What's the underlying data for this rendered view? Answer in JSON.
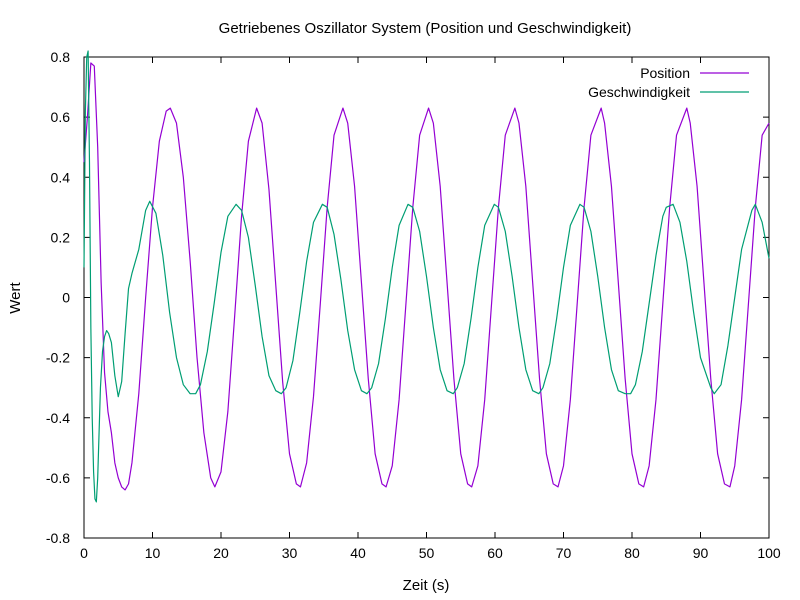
{
  "chart_data": {
    "type": "line",
    "title": "Getriebenes Oszillator System (Position und Geschwindigkeit)",
    "xlabel": "Zeit (s)",
    "ylabel": "Wert",
    "xlim": [
      0,
      100
    ],
    "ylim": [
      -0.8,
      0.8
    ],
    "xticks": [
      0,
      10,
      20,
      30,
      40,
      50,
      60,
      70,
      80,
      90,
      100
    ],
    "xtick_labels": [
      "0",
      "10",
      "20",
      "30",
      "40",
      "50",
      "60",
      "70",
      "80",
      "90",
      "100"
    ],
    "yticks": [
      0.8,
      0.6,
      0.4,
      0.2,
      0,
      -0.2,
      -0.4,
      -0.6,
      -0.8
    ],
    "ytick_labels": [
      "0.8",
      "0.6",
      "0.4",
      "0.2",
      "0",
      "-0.2",
      "-0.4",
      "-0.6",
      "-0.8"
    ],
    "grid": false,
    "legend_position": "top-right",
    "series": [
      {
        "name": "Position",
        "color": "#9400d3",
        "x": [
          0,
          0.5,
          1,
          1.5,
          2,
          2.5,
          3,
          3.5,
          4,
          4.5,
          5,
          5.5,
          6,
          6.5,
          7,
          8,
          9,
          10,
          11,
          12,
          12.6,
          13.5,
          14.5,
          15.5,
          16.5,
          17.5,
          18.5,
          19.1,
          20,
          21,
          22,
          23,
          24,
          25.2,
          26,
          27,
          28,
          29,
          30,
          31,
          31.6,
          32.5,
          33.5,
          34.5,
          35.5,
          36.5,
          37.8,
          38.5,
          39.5,
          40.5,
          41.5,
          42.5,
          43.5,
          44.1,
          45,
          46,
          47,
          48,
          49,
          50.3,
          51,
          52,
          53,
          54,
          55,
          56,
          56.6,
          57.5,
          58.5,
          59.5,
          60.5,
          61.5,
          62.9,
          63.5,
          64.5,
          65.5,
          66.5,
          67.5,
          68.5,
          69.2,
          70,
          71,
          72,
          73,
          74,
          75.5,
          76,
          77,
          78,
          79,
          80,
          81,
          81.7,
          82.5,
          83.5,
          84.5,
          85.5,
          86.5,
          88,
          88.5,
          89.5,
          90.5,
          91.5,
          92.5,
          93.5,
          94.3,
          95,
          96,
          97,
          98,
          99,
          100
        ],
        "y": [
          0.45,
          0.6,
          0.78,
          0.77,
          0.5,
          0.05,
          -0.25,
          -0.38,
          -0.45,
          -0.55,
          -0.6,
          -0.63,
          -0.64,
          -0.62,
          -0.55,
          -0.32,
          0.0,
          0.3,
          0.52,
          0.62,
          0.63,
          0.58,
          0.4,
          0.12,
          -0.2,
          -0.45,
          -0.6,
          -0.63,
          -0.58,
          -0.38,
          -0.06,
          0.27,
          0.52,
          0.63,
          0.58,
          0.36,
          0.04,
          -0.28,
          -0.52,
          -0.62,
          -0.63,
          -0.55,
          -0.33,
          -0.02,
          0.3,
          0.54,
          0.63,
          0.58,
          0.37,
          0.05,
          -0.27,
          -0.52,
          -0.62,
          -0.63,
          -0.56,
          -0.34,
          -0.02,
          0.3,
          0.54,
          0.63,
          0.58,
          0.37,
          0.05,
          -0.27,
          -0.52,
          -0.62,
          -0.63,
          -0.56,
          -0.34,
          -0.02,
          0.3,
          0.54,
          0.63,
          0.58,
          0.37,
          0.05,
          -0.27,
          -0.52,
          -0.62,
          -0.63,
          -0.56,
          -0.34,
          -0.02,
          0.3,
          0.54,
          0.63,
          0.58,
          0.37,
          0.05,
          -0.27,
          -0.52,
          -0.62,
          -0.63,
          -0.56,
          -0.34,
          -0.02,
          0.3,
          0.54,
          0.63,
          0.58,
          0.37,
          0.05,
          -0.27,
          -0.52,
          -0.62,
          -0.63,
          -0.56,
          -0.34,
          -0.02,
          0.3,
          0.54,
          0.58
        ]
      },
      {
        "name": "Geschwindigkeit",
        "color": "#009e73",
        "x": [
          0,
          0.2,
          0.4,
          0.6,
          0.8,
          1,
          1.2,
          1.4,
          1.6,
          1.8,
          2,
          2.2,
          2.4,
          2.7,
          3,
          3.3,
          3.6,
          4,
          4.5,
          5,
          5.5,
          6,
          6.5,
          7,
          8,
          9,
          9.6,
          10.5,
          11.5,
          12.5,
          13.5,
          14.5,
          15.5,
          16.3,
          17,
          18,
          19,
          20,
          21,
          22.2,
          23,
          24,
          25,
          26,
          27,
          28,
          28.8,
          29.5,
          30.5,
          31.5,
          32.5,
          33.5,
          34.8,
          35.5,
          36.5,
          37.5,
          38.5,
          39.5,
          40.5,
          41.3,
          42,
          43,
          44,
          45,
          46,
          47.3,
          48,
          49,
          50,
          51,
          52,
          53,
          53.9,
          54.5,
          55.5,
          56.5,
          57.5,
          58.5,
          59.9,
          60.5,
          61.5,
          62.5,
          63.5,
          64.5,
          65.5,
          66.4,
          67,
          68,
          69,
          70,
          71,
          72.4,
          73,
          74,
          75,
          76,
          77,
          78,
          79,
          79.8,
          80.5,
          81.5,
          82.5,
          83.5,
          84.5,
          85,
          86,
          87,
          88,
          89,
          90,
          91.5,
          92,
          93,
          94,
          95,
          96,
          97.5,
          98,
          99,
          100
        ],
        "y": [
          0.1,
          0.62,
          0.8,
          0.82,
          0.45,
          -0.1,
          -0.4,
          -0.58,
          -0.67,
          -0.68,
          -0.6,
          -0.45,
          -0.3,
          -0.18,
          -0.13,
          -0.11,
          -0.12,
          -0.15,
          -0.26,
          -0.33,
          -0.28,
          -0.12,
          0.03,
          0.08,
          0.16,
          0.29,
          0.32,
          0.28,
          0.14,
          -0.05,
          -0.2,
          -0.29,
          -0.32,
          -0.32,
          -0.29,
          -0.18,
          -0.02,
          0.15,
          0.27,
          0.31,
          0.29,
          0.2,
          0.04,
          -0.13,
          -0.26,
          -0.31,
          -0.32,
          -0.3,
          -0.21,
          -0.05,
          0.12,
          0.25,
          0.31,
          0.3,
          0.21,
          0.06,
          -0.11,
          -0.24,
          -0.31,
          -0.32,
          -0.3,
          -0.22,
          -0.07,
          0.1,
          0.24,
          0.31,
          0.3,
          0.22,
          0.07,
          -0.1,
          -0.24,
          -0.31,
          -0.32,
          -0.3,
          -0.22,
          -0.07,
          0.1,
          0.24,
          0.31,
          0.3,
          0.22,
          0.07,
          -0.1,
          -0.24,
          -0.31,
          -0.32,
          -0.3,
          -0.22,
          -0.07,
          0.1,
          0.24,
          0.31,
          0.3,
          0.22,
          0.07,
          -0.1,
          -0.24,
          -0.31,
          -0.32,
          -0.32,
          -0.29,
          -0.18,
          -0.02,
          0.14,
          0.27,
          0.3,
          0.31,
          0.25,
          0.12,
          -0.05,
          -0.2,
          -0.3,
          -0.32,
          -0.29,
          -0.16,
          0.0,
          0.16,
          0.29,
          0.31,
          0.25,
          0.13
        ]
      }
    ]
  }
}
